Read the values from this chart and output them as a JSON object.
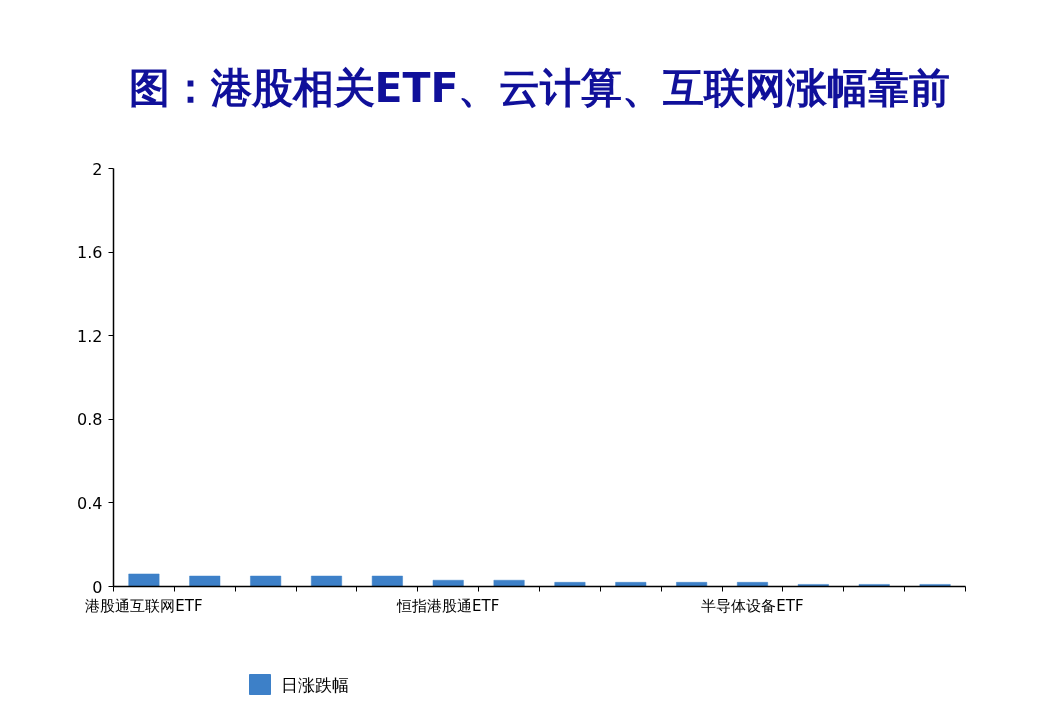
{
  "chart_data": {
    "type": "bar",
    "title": "图：港股相关ETF、云计算、互联网涨幅靠前",
    "categories": [
      "港股通互联网ETF",
      null,
      null,
      null,
      null,
      "恒指港股通ETF",
      null,
      null,
      null,
      null,
      "半导体设备ETF",
      null,
      null,
      null
    ],
    "series": [
      {
        "name": "日涨跌幅",
        "color": "#3d80c8",
        "values": [
          0.06,
          0.05,
          0.05,
          0.05,
          0.05,
          0.03,
          0.03,
          0.02,
          0.02,
          0.02,
          0.02,
          0.01,
          0.01,
          0.01
        ]
      }
    ],
    "ylim": [
      0,
      2
    ],
    "yticks": [
      0,
      0.4,
      0.8,
      1.2,
      1.6,
      2
    ],
    "grid": false,
    "legend": "bottom"
  }
}
